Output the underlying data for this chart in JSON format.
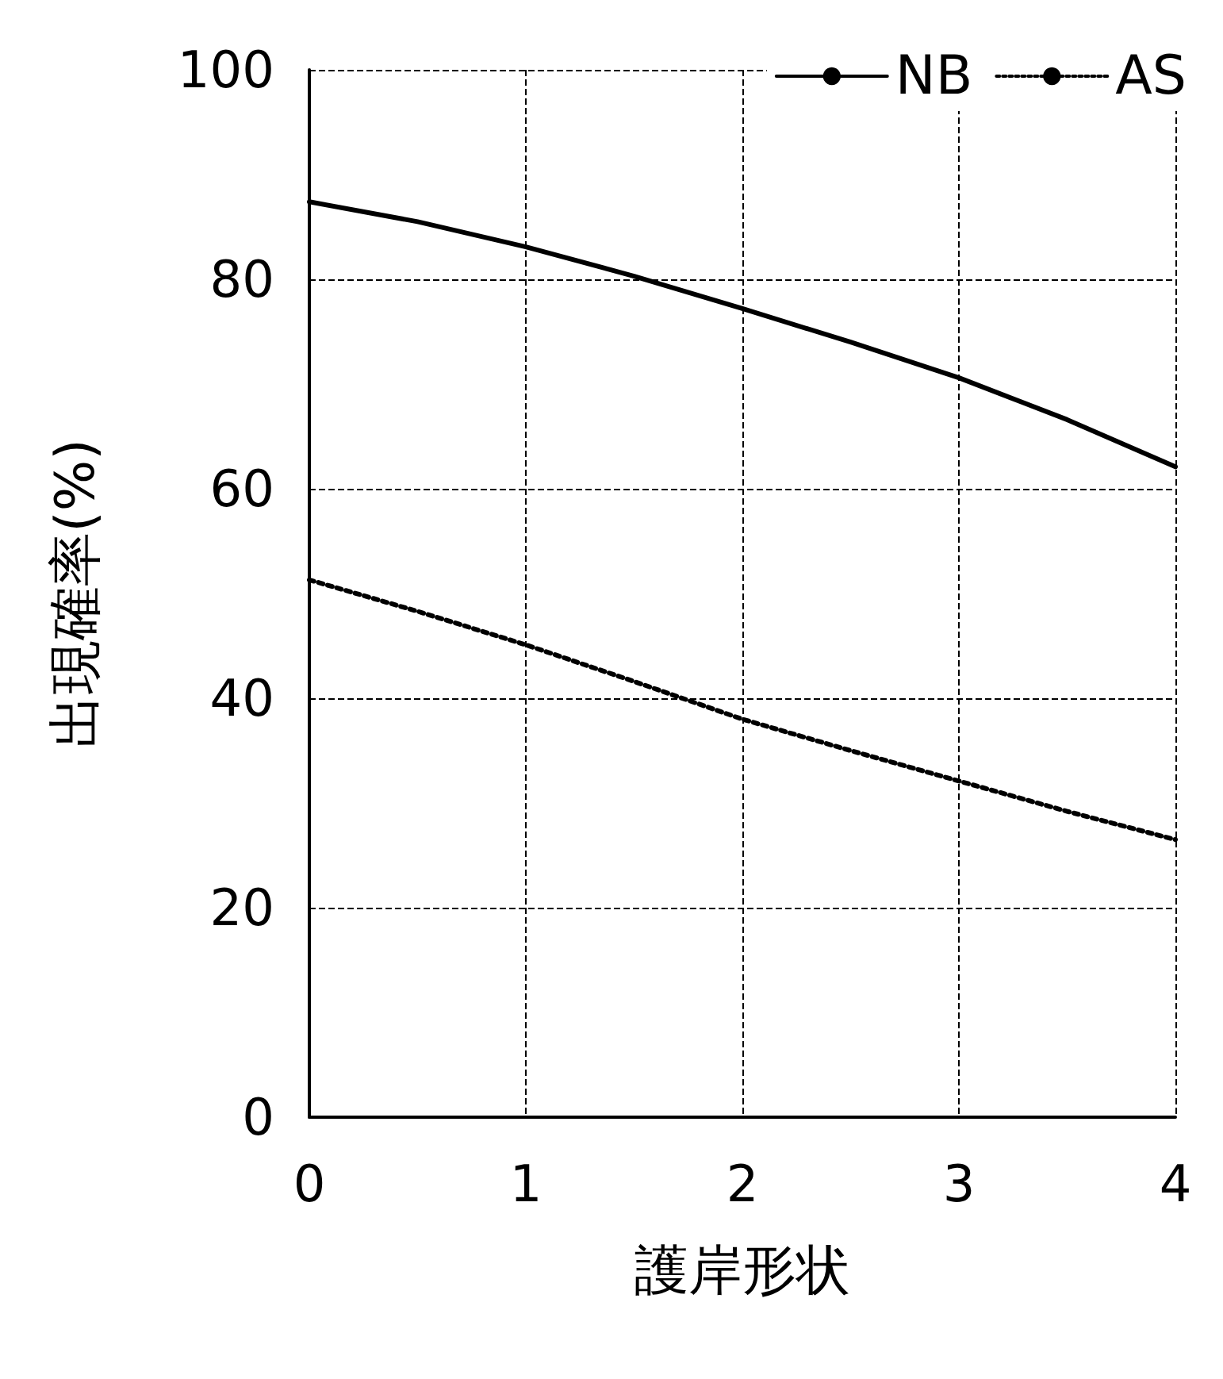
{
  "chart_data": {
    "type": "line",
    "xlabel": "護岸形状",
    "ylabel": "出現確率(%)",
    "x": [
      0,
      0.5,
      1,
      1.5,
      2,
      2.5,
      3,
      3.5,
      4
    ],
    "series": [
      {
        "name": "NB",
        "color": "#000000",
        "line_style": "solid",
        "values": [
          87.4,
          85.5,
          83.1,
          80.3,
          77.2,
          74.0,
          70.6,
          66.6,
          62.1
        ]
      },
      {
        "name": "AS",
        "color": "#000000",
        "line_style": "dotted",
        "values": [
          51.3,
          48.3,
          45.1,
          41.6,
          38.0,
          35.0,
          32.1,
          29.2,
          26.5
        ]
      }
    ],
    "xlim": [
      0,
      4
    ],
    "xticks": [
      0,
      1,
      2,
      3,
      4
    ],
    "ylim": [
      0,
      100
    ],
    "yticks": [
      0,
      20,
      40,
      60,
      80,
      100
    ],
    "grid": true,
    "legend": "top right",
    "marker": "none"
  }
}
